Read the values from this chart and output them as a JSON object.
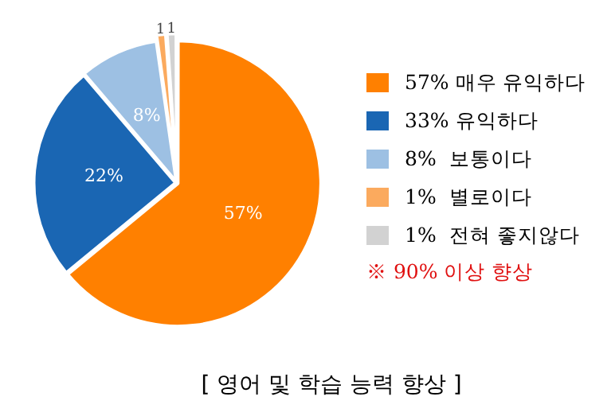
{
  "chart_data": {
    "type": "pie",
    "title": "[ 영어 및 학습 능력 향상 ]",
    "categories": [
      "57% 매우 유익하다",
      "33% 유익하다",
      "8%  보통이다",
      "1%  별로이다",
      "1%  전혀 좋지않다"
    ],
    "values": [
      57,
      22,
      8,
      1,
      1
    ],
    "colors": [
      "#ff8000",
      "#1a66b3",
      "#9dc0e3",
      "#fbaa5e",
      "#d2d2d2"
    ],
    "value_labels": [
      "57%",
      "22%",
      "8%",
      "1",
      "1"
    ],
    "annotations": [
      "※ 90% 이상 향상"
    ],
    "legend": "right"
  }
}
